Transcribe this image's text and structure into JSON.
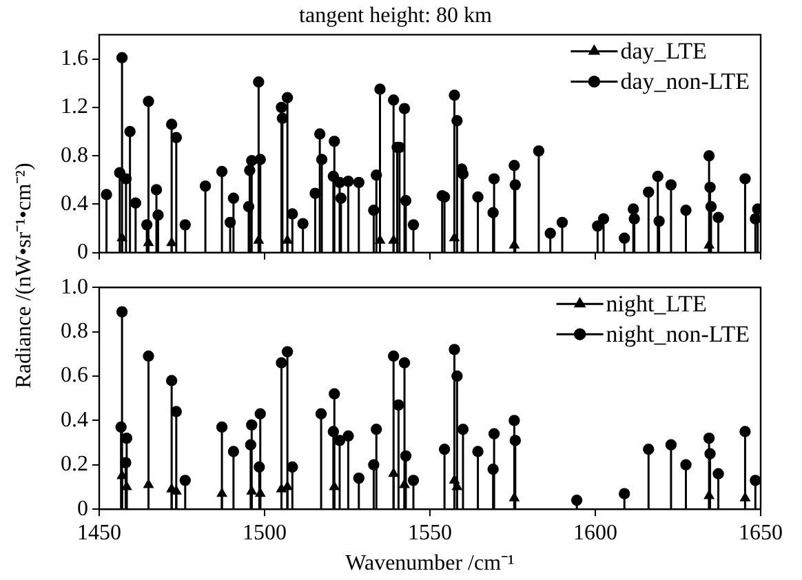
{
  "chart_data": [
    {
      "type": "lollipop",
      "title": "tangent height: 80 km",
      "ylabel": "Radiance /(nW•sr⁻¹•cm⁻²)",
      "xlim": [
        1450,
        1650
      ],
      "xticks": [
        1450,
        1500,
        1550,
        1600,
        1650
      ],
      "ylim": [
        0,
        1.8
      ],
      "yticks": [
        0,
        0.4,
        0.8,
        1.2,
        1.6
      ],
      "tick_labels": "y",
      "legend": "top right",
      "grid": false,
      "series": [
        {
          "name": "day_non-LTE",
          "color": "#000000",
          "marker": "circle",
          "x": [
            1452.2,
            1456.2,
            1456.9,
            1458.1,
            1459.3,
            1461.0,
            1464.4,
            1464.9,
            1467.3,
            1467.8,
            1471.9,
            1473.3,
            1476.0,
            1482.1,
            1487.1,
            1489.6,
            1490.6,
            1495.2,
            1495.5,
            1496.1,
            1498.2,
            1498.7,
            1505.1,
            1505.4,
            1506.9,
            1508.4,
            1511.6,
            1515.3,
            1516.7,
            1517.3,
            1520.8,
            1521.1,
            1522.7,
            1523.1,
            1525.3,
            1528.5,
            1533.0,
            1533.8,
            1534.9,
            1539.0,
            1540.1,
            1540.8,
            1542.3,
            1542.7,
            1545.0,
            1553.7,
            1554.4,
            1557.4,
            1558.2,
            1559.6,
            1560.0,
            1564.5,
            1569.1,
            1569.4,
            1575.5,
            1575.8,
            1582.9,
            1586.4,
            1590.0,
            1600.7,
            1602.5,
            1608.8,
            1611.5,
            1611.8,
            1616.1,
            1618.9,
            1619.3,
            1622.9,
            1627.4,
            1634.4,
            1634.7,
            1635.0,
            1637.2,
            1645.3,
            1648.4,
            1649.1
          ],
          "values": [
            0.48,
            0.66,
            1.61,
            0.61,
            1.0,
            0.41,
            0.23,
            1.25,
            0.52,
            0.31,
            1.06,
            0.95,
            0.23,
            0.55,
            0.67,
            0.25,
            0.45,
            0.38,
            0.68,
            0.76,
            1.41,
            0.77,
            1.2,
            1.11,
            1.28,
            0.32,
            0.24,
            0.49,
            0.98,
            0.77,
            0.63,
            0.92,
            0.58,
            0.45,
            0.59,
            0.58,
            0.35,
            0.64,
            1.35,
            1.26,
            0.87,
            0.87,
            1.19,
            0.43,
            0.23,
            0.47,
            0.46,
            1.3,
            1.09,
            0.69,
            0.65,
            0.46,
            0.33,
            0.61,
            0.72,
            0.56,
            0.84,
            0.16,
            0.25,
            0.22,
            0.28,
            0.12,
            0.36,
            0.28,
            0.5,
            0.63,
            0.26,
            0.56,
            0.35,
            0.8,
            0.54,
            0.38,
            0.29,
            0.61,
            0.28,
            0.36
          ]
        },
        {
          "name": "day_LTE",
          "color": "#000000",
          "marker": "triangle",
          "x": [
            1456.9,
            1464.9,
            1471.9,
            1498.2,
            1506.9,
            1534.9,
            1539.0,
            1557.4,
            1575.5,
            1634.4
          ],
          "values": [
            0.12,
            0.08,
            0.08,
            0.1,
            0.1,
            0.1,
            0.1,
            0.12,
            0.06,
            0.06
          ]
        }
      ]
    },
    {
      "type": "lollipop",
      "xlabel": "Wavenumber /cm⁻¹",
      "xlim": [
        1450,
        1650
      ],
      "xticks": [
        1450,
        1500,
        1550,
        1600,
        1650
      ],
      "ylim": [
        0,
        1.0
      ],
      "yticks": [
        0,
        0.2,
        0.4,
        0.6,
        0.8,
        {
          "value": 1.0,
          "label": "1.0"
        }
      ],
      "legend": "top right",
      "grid": false,
      "series": [
        {
          "name": "night_non-LTE",
          "color": "#000000",
          "marker": "circle",
          "x": [
            1456.6,
            1456.9,
            1458.0,
            1458.3,
            1464.9,
            1471.9,
            1473.3,
            1476.0,
            1487.1,
            1490.6,
            1495.8,
            1496.1,
            1498.4,
            1498.7,
            1505.1,
            1506.9,
            1508.4,
            1517.1,
            1520.8,
            1521.1,
            1522.7,
            1525.3,
            1528.5,
            1533.0,
            1533.8,
            1539.0,
            1540.5,
            1542.3,
            1542.7,
            1545.0,
            1553.7,
            1554.4,
            1557.4,
            1558.2,
            1559.6,
            1560.0,
            1564.5,
            1569.1,
            1569.4,
            1575.5,
            1575.8,
            1594.4,
            1608.8,
            1616.1,
            1622.9,
            1627.4,
            1634.4,
            1634.7,
            1637.2,
            1645.3,
            1648.4
          ],
          "values": [
            0.37,
            0.89,
            0.21,
            0.32,
            0.69,
            0.58,
            0.44,
            0.13,
            0.37,
            0.26,
            0.29,
            0.38,
            0.19,
            0.43,
            0.66,
            0.71,
            0.19,
            0.43,
            0.35,
            0.52,
            0.31,
            0.33,
            0.14,
            0.2,
            0.36,
            0.69,
            0.47,
            0.66,
            0.24,
            0.13,
            null,
            0.27,
            0.72,
            0.6,
            null,
            0.36,
            0.26,
            0.18,
            0.34,
            0.4,
            0.31,
            0.04,
            0.07,
            0.27,
            0.29,
            0.2,
            0.32,
            0.25,
            0.16,
            0.35,
            0.13
          ]
        },
        {
          "name": "night_LTE",
          "color": "#000000",
          "marker": "triangle",
          "x": [
            1456.9,
            1458.3,
            1464.9,
            1471.9,
            1473.3,
            1487.1,
            1496.1,
            1498.7,
            1505.1,
            1506.9,
            1521.1,
            1539.0,
            1542.3,
            1557.4,
            1558.2,
            1575.5,
            1634.4,
            1645.3
          ],
          "values": [
            0.15,
            0.1,
            0.11,
            0.09,
            0.08,
            0.07,
            0.08,
            0.07,
            0.09,
            0.1,
            0.1,
            0.16,
            0.11,
            0.13,
            0.1,
            0.05,
            0.06,
            0.05
          ]
        }
      ]
    }
  ]
}
